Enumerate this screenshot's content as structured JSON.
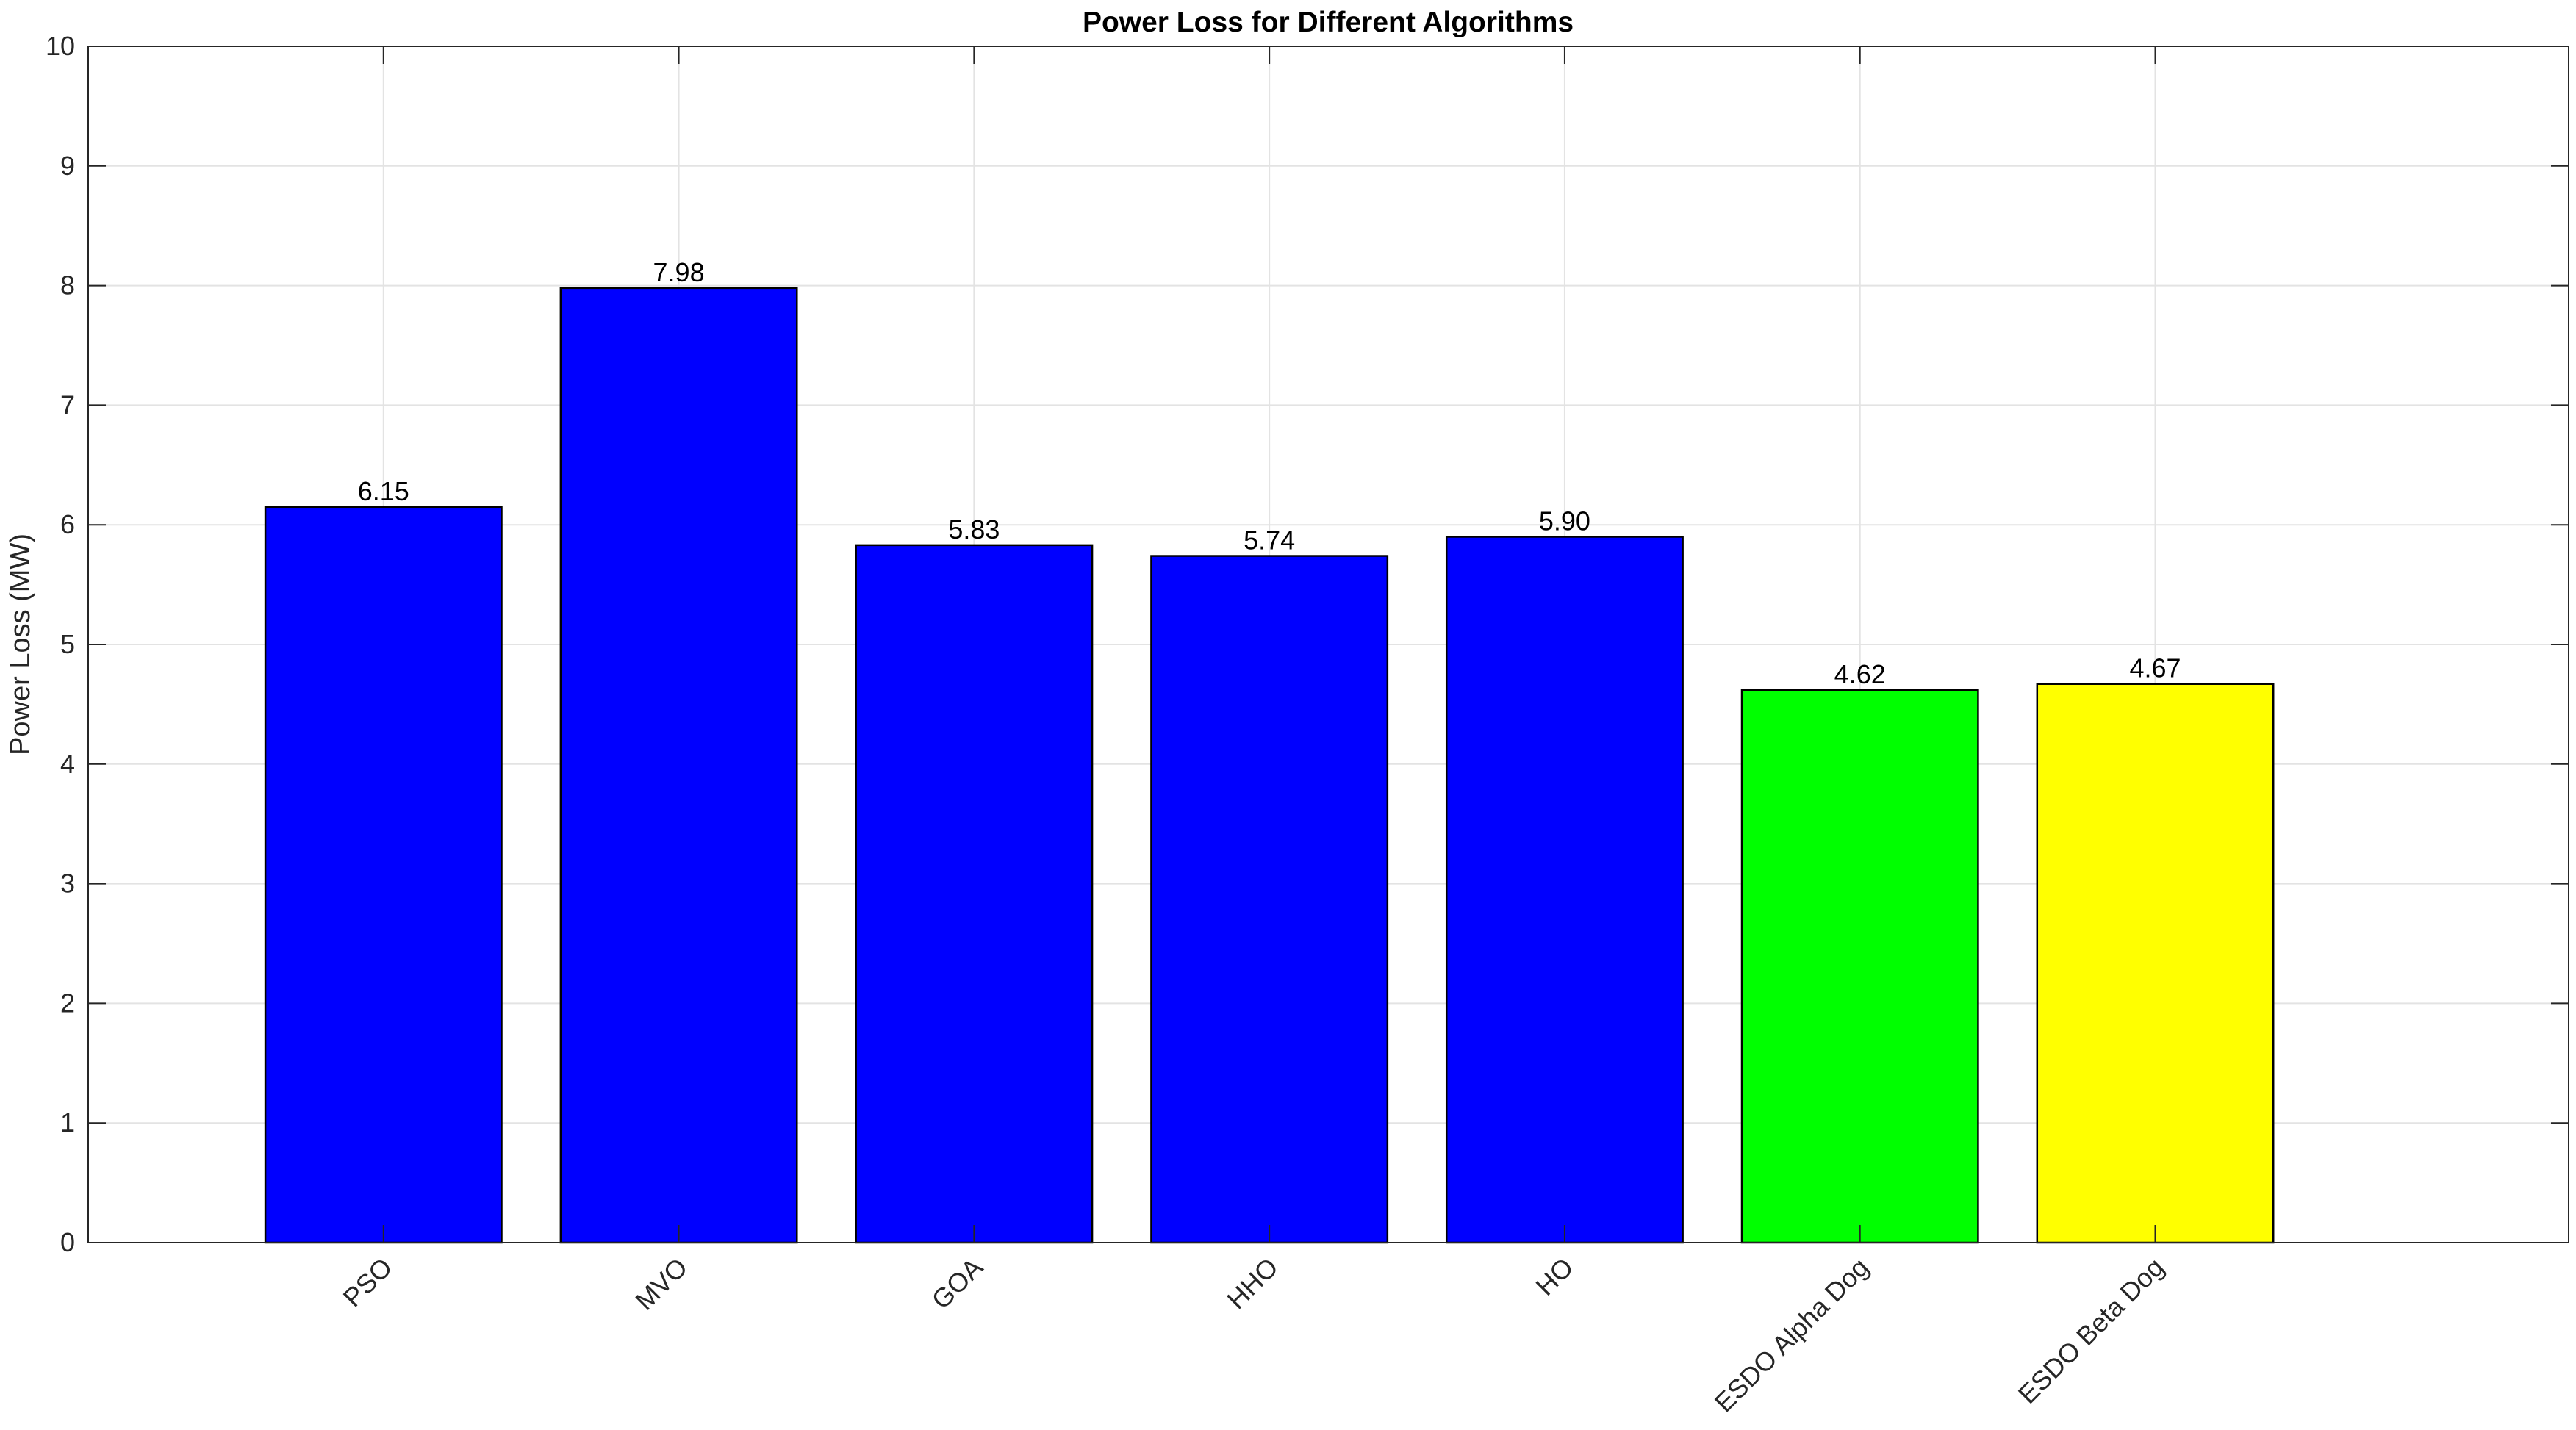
{
  "chart_data": {
    "type": "bar",
    "title": "Power Loss for Different Algorithms",
    "xlabel": "",
    "ylabel": "Power Loss (MW)",
    "categories": [
      "PSO",
      "MVO",
      "GOA",
      "HHO",
      "HO",
      "ESDO Alpha Dog",
      "ESDO Beta Dog"
    ],
    "values": [
      6.15,
      7.98,
      5.83,
      5.74,
      5.9,
      4.62,
      4.67
    ],
    "data_labels": [
      "6.15",
      "7.98",
      "5.83",
      "5.74",
      "5.90",
      "4.62",
      "4.67"
    ],
    "colors": [
      "#0000ff",
      "#0000ff",
      "#0000ff",
      "#0000ff",
      "#0000ff",
      "#00ff00",
      "#ffff00"
    ],
    "ylim": [
      0,
      10
    ],
    "xlim": [
      0,
      8.4
    ],
    "yticks": [
      0,
      1,
      2,
      3,
      4,
      5,
      6,
      7,
      8,
      9,
      10
    ],
    "grid": true,
    "legend": "none"
  }
}
